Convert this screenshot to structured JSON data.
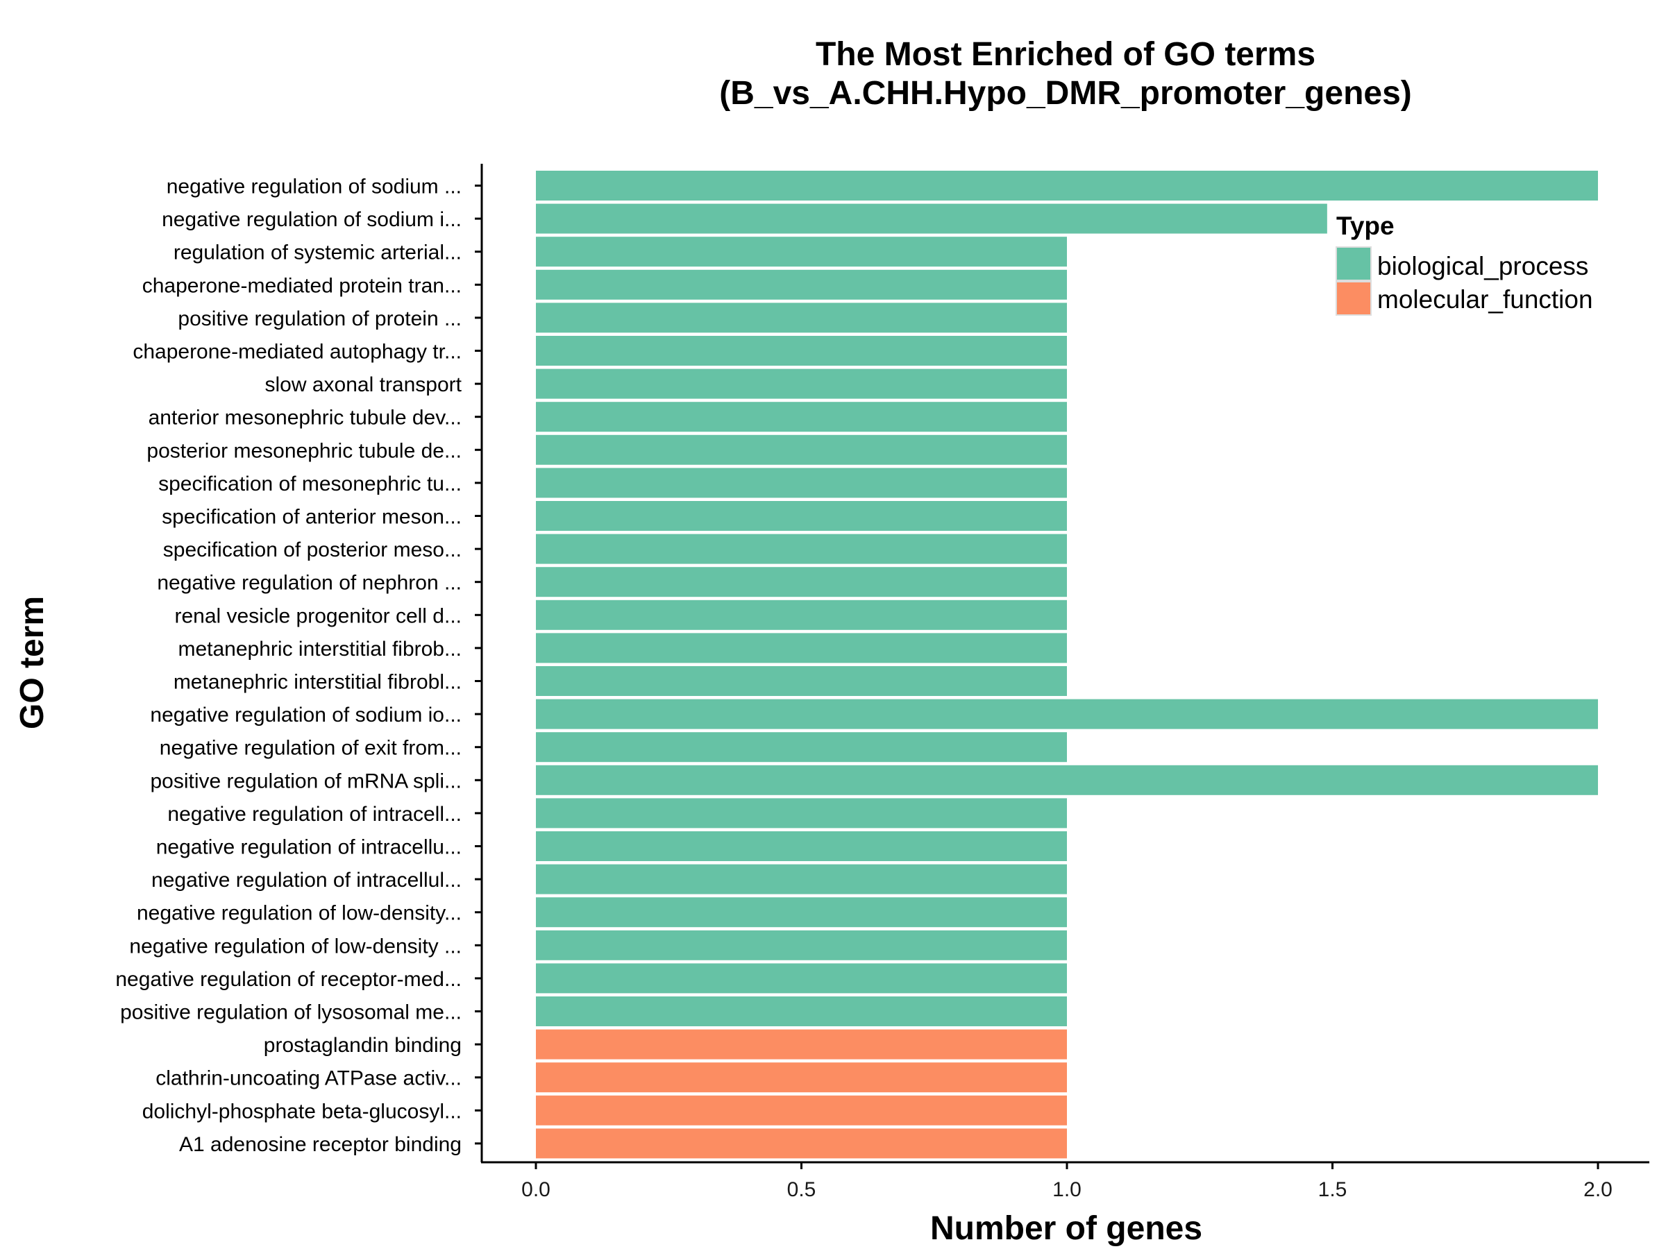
{
  "chart_data": {
    "type": "bar",
    "orientation": "horizontal",
    "title": "The Most Enriched of GO terms",
    "subtitle": "(B_vs_A.CHH.Hypo_DMR_promoter_genes)",
    "xlabel": "Number of genes",
    "ylabel": "GO term",
    "xlim": [
      -0.1,
      2.1
    ],
    "xticks": [
      "0.0",
      "0.5",
      "1.0",
      "1.5",
      "2.0"
    ],
    "grid": false,
    "legend": {
      "title": "Type",
      "placement": "top-right",
      "entries": [
        {
          "label": "biological_process",
          "color": "#66c2a5"
        },
        {
          "label": "molecular_function",
          "color": "#fc8d62"
        }
      ]
    },
    "colors": {
      "biological_process": "#66c2a5",
      "molecular_function": "#fc8d62"
    },
    "categories": [
      "negative regulation of sodium ...",
      "negative regulation of sodium i...",
      "regulation of systemic arterial...",
      "chaperone-mediated protein tran...",
      "positive regulation of protein ...",
      "chaperone-mediated autophagy tr...",
      "slow axonal transport",
      "anterior mesonephric tubule dev...",
      "posterior mesonephric tubule de...",
      "specification of mesonephric tu...",
      "specification of anterior meson...",
      "specification of posterior meso...",
      "negative regulation of nephron ...",
      "renal vesicle progenitor cell d...",
      "metanephric interstitial fibrob...",
      "metanephric interstitial fibrobl...",
      "negative regulation of sodium io...",
      "negative regulation of exit from...",
      "positive regulation of mRNA spli...",
      "negative regulation of intracell...",
      "negative regulation of intracellu...",
      "negative regulation of intracellul...",
      "negative regulation of low-density...",
      "negative regulation of low-density ...",
      "negative regulation of receptor-med...",
      "positive regulation of lysosomal me...",
      "prostaglandin binding",
      "clathrin-uncoating ATPase activ...",
      "dolichyl-phosphate beta-glucosyl...",
      "A1 adenosine receptor binding"
    ],
    "values": [
      2,
      1.49,
      1,
      1,
      1,
      1,
      1,
      1,
      1,
      1,
      1,
      1,
      1,
      1,
      1,
      1,
      2,
      1,
      2,
      1,
      1,
      1,
      1,
      1,
      1,
      1,
      1,
      1,
      1,
      1
    ],
    "types": [
      "biological_process",
      "biological_process",
      "biological_process",
      "biological_process",
      "biological_process",
      "biological_process",
      "biological_process",
      "biological_process",
      "biological_process",
      "biological_process",
      "biological_process",
      "biological_process",
      "biological_process",
      "biological_process",
      "biological_process",
      "biological_process",
      "biological_process",
      "biological_process",
      "biological_process",
      "biological_process",
      "biological_process",
      "biological_process",
      "biological_process",
      "biological_process",
      "biological_process",
      "biological_process",
      "molecular_function",
      "molecular_function",
      "molecular_function",
      "molecular_function"
    ]
  }
}
